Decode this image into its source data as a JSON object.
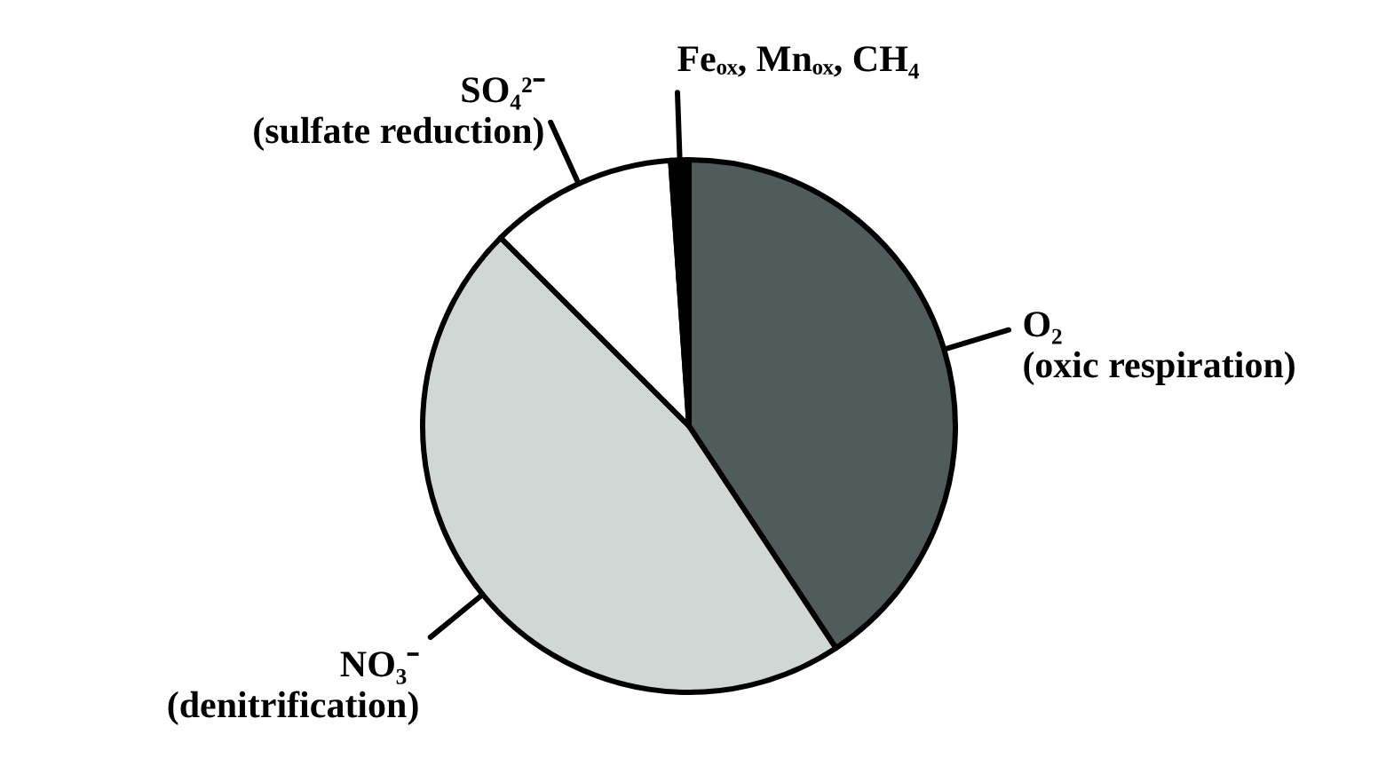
{
  "chart_data": {
    "type": "pie",
    "categories": [
      "O₂\n(oxic respiration)",
      "NO₃⁻\n(denitrification)",
      "SO₄²⁻\n(sulfate reduction)",
      "Feₒₓ, Mnₒₓ, CH₄"
    ],
    "values": [
      40.7,
      46.8,
      11.4,
      1.1
    ],
    "colors": [
      "#505c5c",
      "#d0d7d5",
      "#ffffff",
      "#000000"
    ],
    "legend": false
  }
}
